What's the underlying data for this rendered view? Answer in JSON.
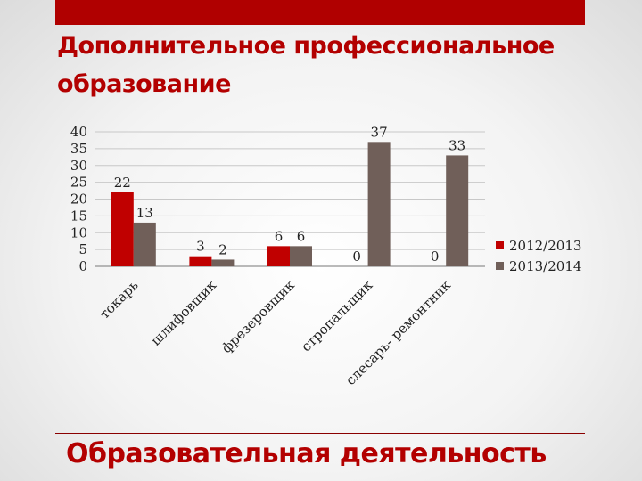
{
  "slide": {
    "title": "Дополнительное профессиональное образование",
    "footer": "Образовательная деятельность"
  },
  "colors": {
    "accent": "#b00000",
    "series_2012": "#c00000",
    "series_2013": "#705f59"
  },
  "chart_data": {
    "type": "bar",
    "categories": [
      "токарь",
      "шлифовщик",
      "фрезеровщик",
      "стропальщик",
      "слесарь- ремонтник"
    ],
    "series": [
      {
        "name": "2012/2013",
        "values": [
          22,
          3,
          6,
          0,
          0
        ]
      },
      {
        "name": "2013/2014",
        "values": [
          13,
          2,
          6,
          37,
          33
        ]
      }
    ],
    "ylim": [
      0,
      40
    ],
    "yticks": [
      0,
      5,
      10,
      15,
      20,
      25,
      30,
      35,
      40
    ],
    "grid": true,
    "legend": "right",
    "data_labels": true
  }
}
